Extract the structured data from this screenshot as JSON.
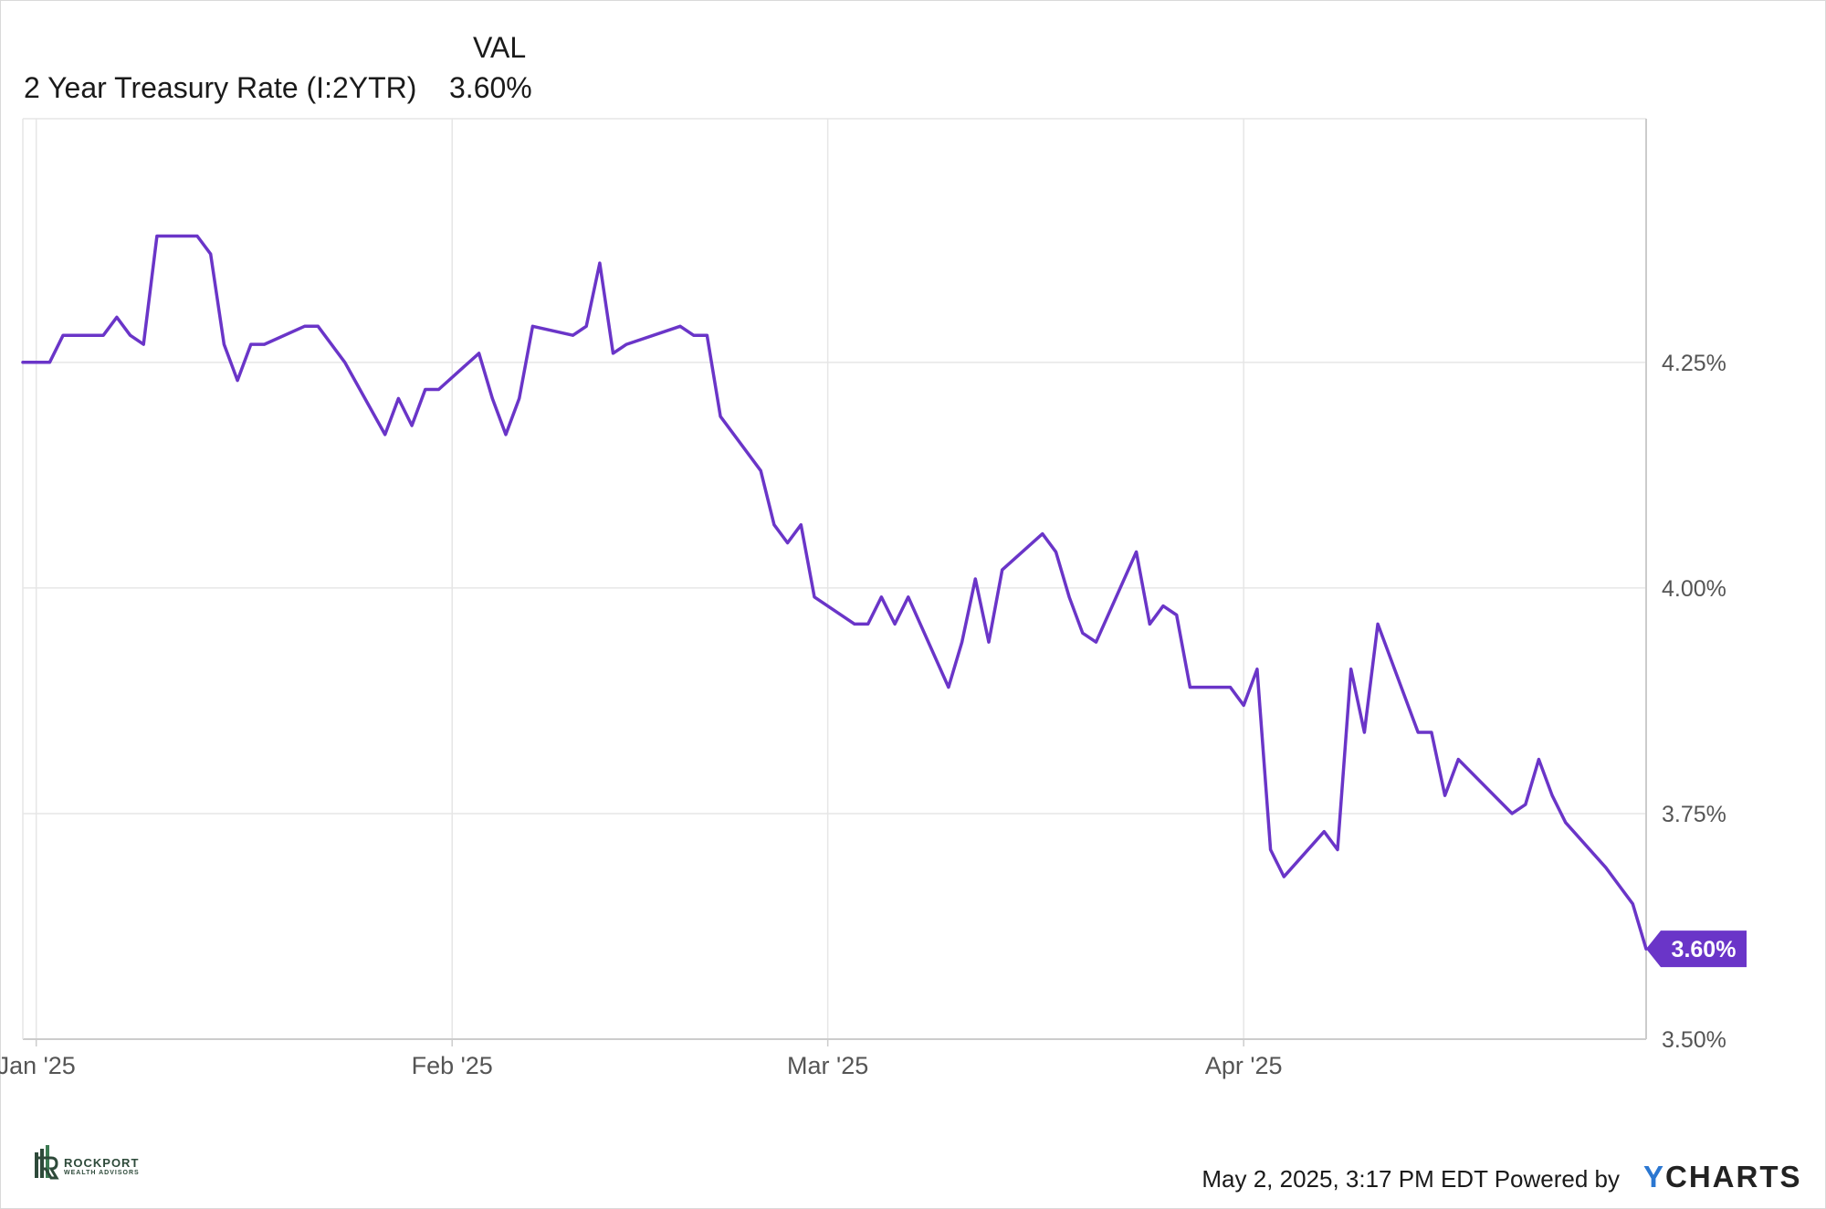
{
  "legend": {
    "value_header": "VAL",
    "series_name": "2 Year Treasury Rate (I:2YTR)",
    "series_value": "3.60%"
  },
  "colors": {
    "series": "#6a35c8",
    "grid": "#e6e6e6",
    "axis": "#cccccc",
    "ycharts_y": "#2b77d1",
    "brand_green": "#2e4a3a"
  },
  "chart_data": {
    "type": "line",
    "title": "",
    "xlabel": "",
    "ylabel": "",
    "ylim": [
      3.5,
      4.52
    ],
    "y_ticks": [
      3.5,
      3.75,
      4.0,
      4.25
    ],
    "y_tick_labels": [
      "3.50%",
      "3.75%",
      "4.00%",
      "4.25%"
    ],
    "x_range": [
      "2024-12-31",
      "2025-05-01"
    ],
    "x_ticks": [
      "2025-01-01",
      "2025-02-01",
      "2025-03-01",
      "2025-04-01"
    ],
    "x_tick_labels": [
      "Jan '25",
      "Feb '25",
      "Mar '25",
      "Apr '25"
    ],
    "grid": true,
    "last_value_label": "3.60%",
    "series": [
      {
        "name": "2 Year Treasury Rate (I:2YTR)",
        "x": [
          "2024-12-31",
          "2025-01-02",
          "2025-01-03",
          "2025-01-06",
          "2025-01-07",
          "2025-01-08",
          "2025-01-09",
          "2025-01-10",
          "2025-01-13",
          "2025-01-14",
          "2025-01-15",
          "2025-01-16",
          "2025-01-17",
          "2025-01-18",
          "2025-01-21",
          "2025-01-22",
          "2025-01-23",
          "2025-01-24",
          "2025-01-27",
          "2025-01-28",
          "2025-01-29",
          "2025-01-30",
          "2025-01-31",
          "2025-02-03",
          "2025-02-04",
          "2025-02-05",
          "2025-02-06",
          "2025-02-07",
          "2025-02-10",
          "2025-02-11",
          "2025-02-12",
          "2025-02-13",
          "2025-02-14",
          "2025-02-18",
          "2025-02-19",
          "2025-02-20",
          "2025-02-21",
          "2025-02-24",
          "2025-02-25",
          "2025-02-26",
          "2025-02-27",
          "2025-02-28",
          "2025-03-03",
          "2025-03-04",
          "2025-03-05",
          "2025-03-06",
          "2025-03-07",
          "2025-03-10",
          "2025-03-11",
          "2025-03-12",
          "2025-03-13",
          "2025-03-14",
          "2025-03-17",
          "2025-03-18",
          "2025-03-19",
          "2025-03-20",
          "2025-03-21",
          "2025-03-24",
          "2025-03-25",
          "2025-03-26",
          "2025-03-27",
          "2025-03-28",
          "2025-03-31",
          "2025-04-01",
          "2025-04-02",
          "2025-04-03",
          "2025-04-04",
          "2025-04-07",
          "2025-04-08",
          "2025-04-09",
          "2025-04-10",
          "2025-04-11",
          "2025-04-14",
          "2025-04-15",
          "2025-04-16",
          "2025-04-17",
          "2025-04-21",
          "2025-04-22",
          "2025-04-23",
          "2025-04-24",
          "2025-04-25",
          "2025-04-28",
          "2025-04-29",
          "2025-04-30",
          "2025-05-01"
        ],
        "y": [
          4.25,
          4.25,
          4.28,
          4.28,
          4.3,
          4.28,
          4.27,
          4.39,
          4.39,
          4.37,
          4.27,
          4.23,
          4.27,
          4.27,
          4.29,
          4.29,
          4.27,
          4.25,
          4.17,
          4.21,
          4.18,
          4.22,
          4.22,
          4.26,
          4.21,
          4.17,
          4.21,
          4.29,
          4.28,
          4.29,
          4.36,
          4.26,
          4.27,
          4.29,
          4.28,
          4.28,
          4.19,
          4.13,
          4.07,
          4.05,
          4.07,
          3.99,
          3.96,
          3.96,
          3.99,
          3.96,
          3.99,
          3.89,
          3.94,
          4.01,
          3.94,
          4.02,
          4.06,
          4.04,
          3.99,
          3.95,
          3.94,
          4.04,
          3.96,
          3.98,
          3.97,
          3.89,
          3.89,
          3.87,
          3.91,
          3.71,
          3.68,
          3.73,
          3.71,
          3.91,
          3.84,
          3.96,
          3.84,
          3.84,
          3.77,
          3.81,
          3.75,
          3.76,
          3.81,
          3.77,
          3.74,
          3.69,
          3.67,
          3.65,
          3.6
        ]
      }
    ]
  },
  "branding": {
    "logo_title": "ROCKPORT",
    "logo_sub": "WEALTH ADVISORS",
    "footer_text": "May 2, 2025, 3:17 PM EDT Powered by",
    "ycharts_y": "Y",
    "ycharts_rest": "CHARTS"
  }
}
